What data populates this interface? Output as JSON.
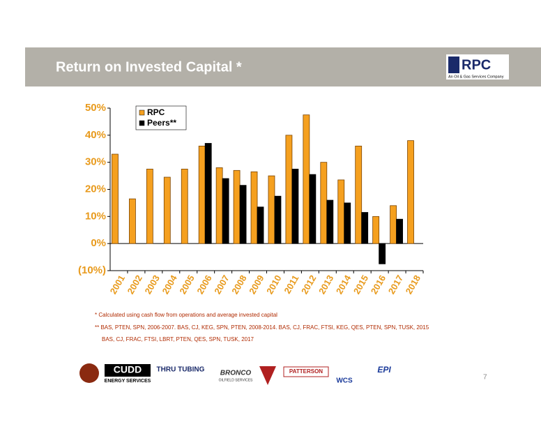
{
  "header": {
    "title": "Return on Invested Capital *",
    "logo": "RPC",
    "logo_tagline": "An Oil & Gas Services Company"
  },
  "chart_data": {
    "type": "bar",
    "categories": [
      "2001",
      "2002",
      "2003",
      "2004",
      "2005",
      "2006",
      "2007",
      "2008",
      "2009",
      "2010",
      "2011",
      "2012",
      "2013",
      "2014",
      "2015",
      "2016",
      "2017",
      "2018"
    ],
    "series": [
      {
        "name": "RPC",
        "color": "#f5a01f",
        "values": [
          33,
          16.5,
          27.5,
          24.5,
          27.5,
          36,
          28,
          27,
          26.5,
          25,
          40,
          47.5,
          30,
          23.5,
          36,
          10,
          14,
          38
        ]
      },
      {
        "name": "Peers**",
        "color": "#000000",
        "values": [
          null,
          null,
          null,
          null,
          null,
          37,
          24,
          21.5,
          13.5,
          17.5,
          27.5,
          25.5,
          16,
          15,
          11.5,
          -7.5,
          9,
          null
        ]
      }
    ],
    "ylim": [
      -10,
      50
    ],
    "yticks": [
      {
        "value": -10,
        "label": "(10%)"
      },
      {
        "value": 0,
        "label": "0%"
      },
      {
        "value": 10,
        "label": "10%"
      },
      {
        "value": 20,
        "label": "20%"
      },
      {
        "value": 30,
        "label": "30%"
      },
      {
        "value": 40,
        "label": "40%"
      },
      {
        "value": 50,
        "label": "50%"
      }
    ],
    "legend": "top-left"
  },
  "footnotes": [
    "* Calculated using cash flow from operations and average invested capital",
    "** BAS, PTEN, SPN, 2006-2007. BAS, CJ, KEG, SPN, PTEN, 2008-2014. BAS, CJ, FRAC, FTSI, KEG, QES, PTEN, SPN, TUSK, 2015",
    "BAS, CJ, FRAC, FTSI, LBRT, PTEN, QES, SPN, TUSK, 2017"
  ],
  "logos": [
    "CUDD",
    "ENERGY SERVICES",
    "THRU TUBING",
    "BRONCO",
    "OILFIELD SERVICES",
    "PATTERSON",
    "WCS",
    "EPI"
  ],
  "page_number": "7"
}
